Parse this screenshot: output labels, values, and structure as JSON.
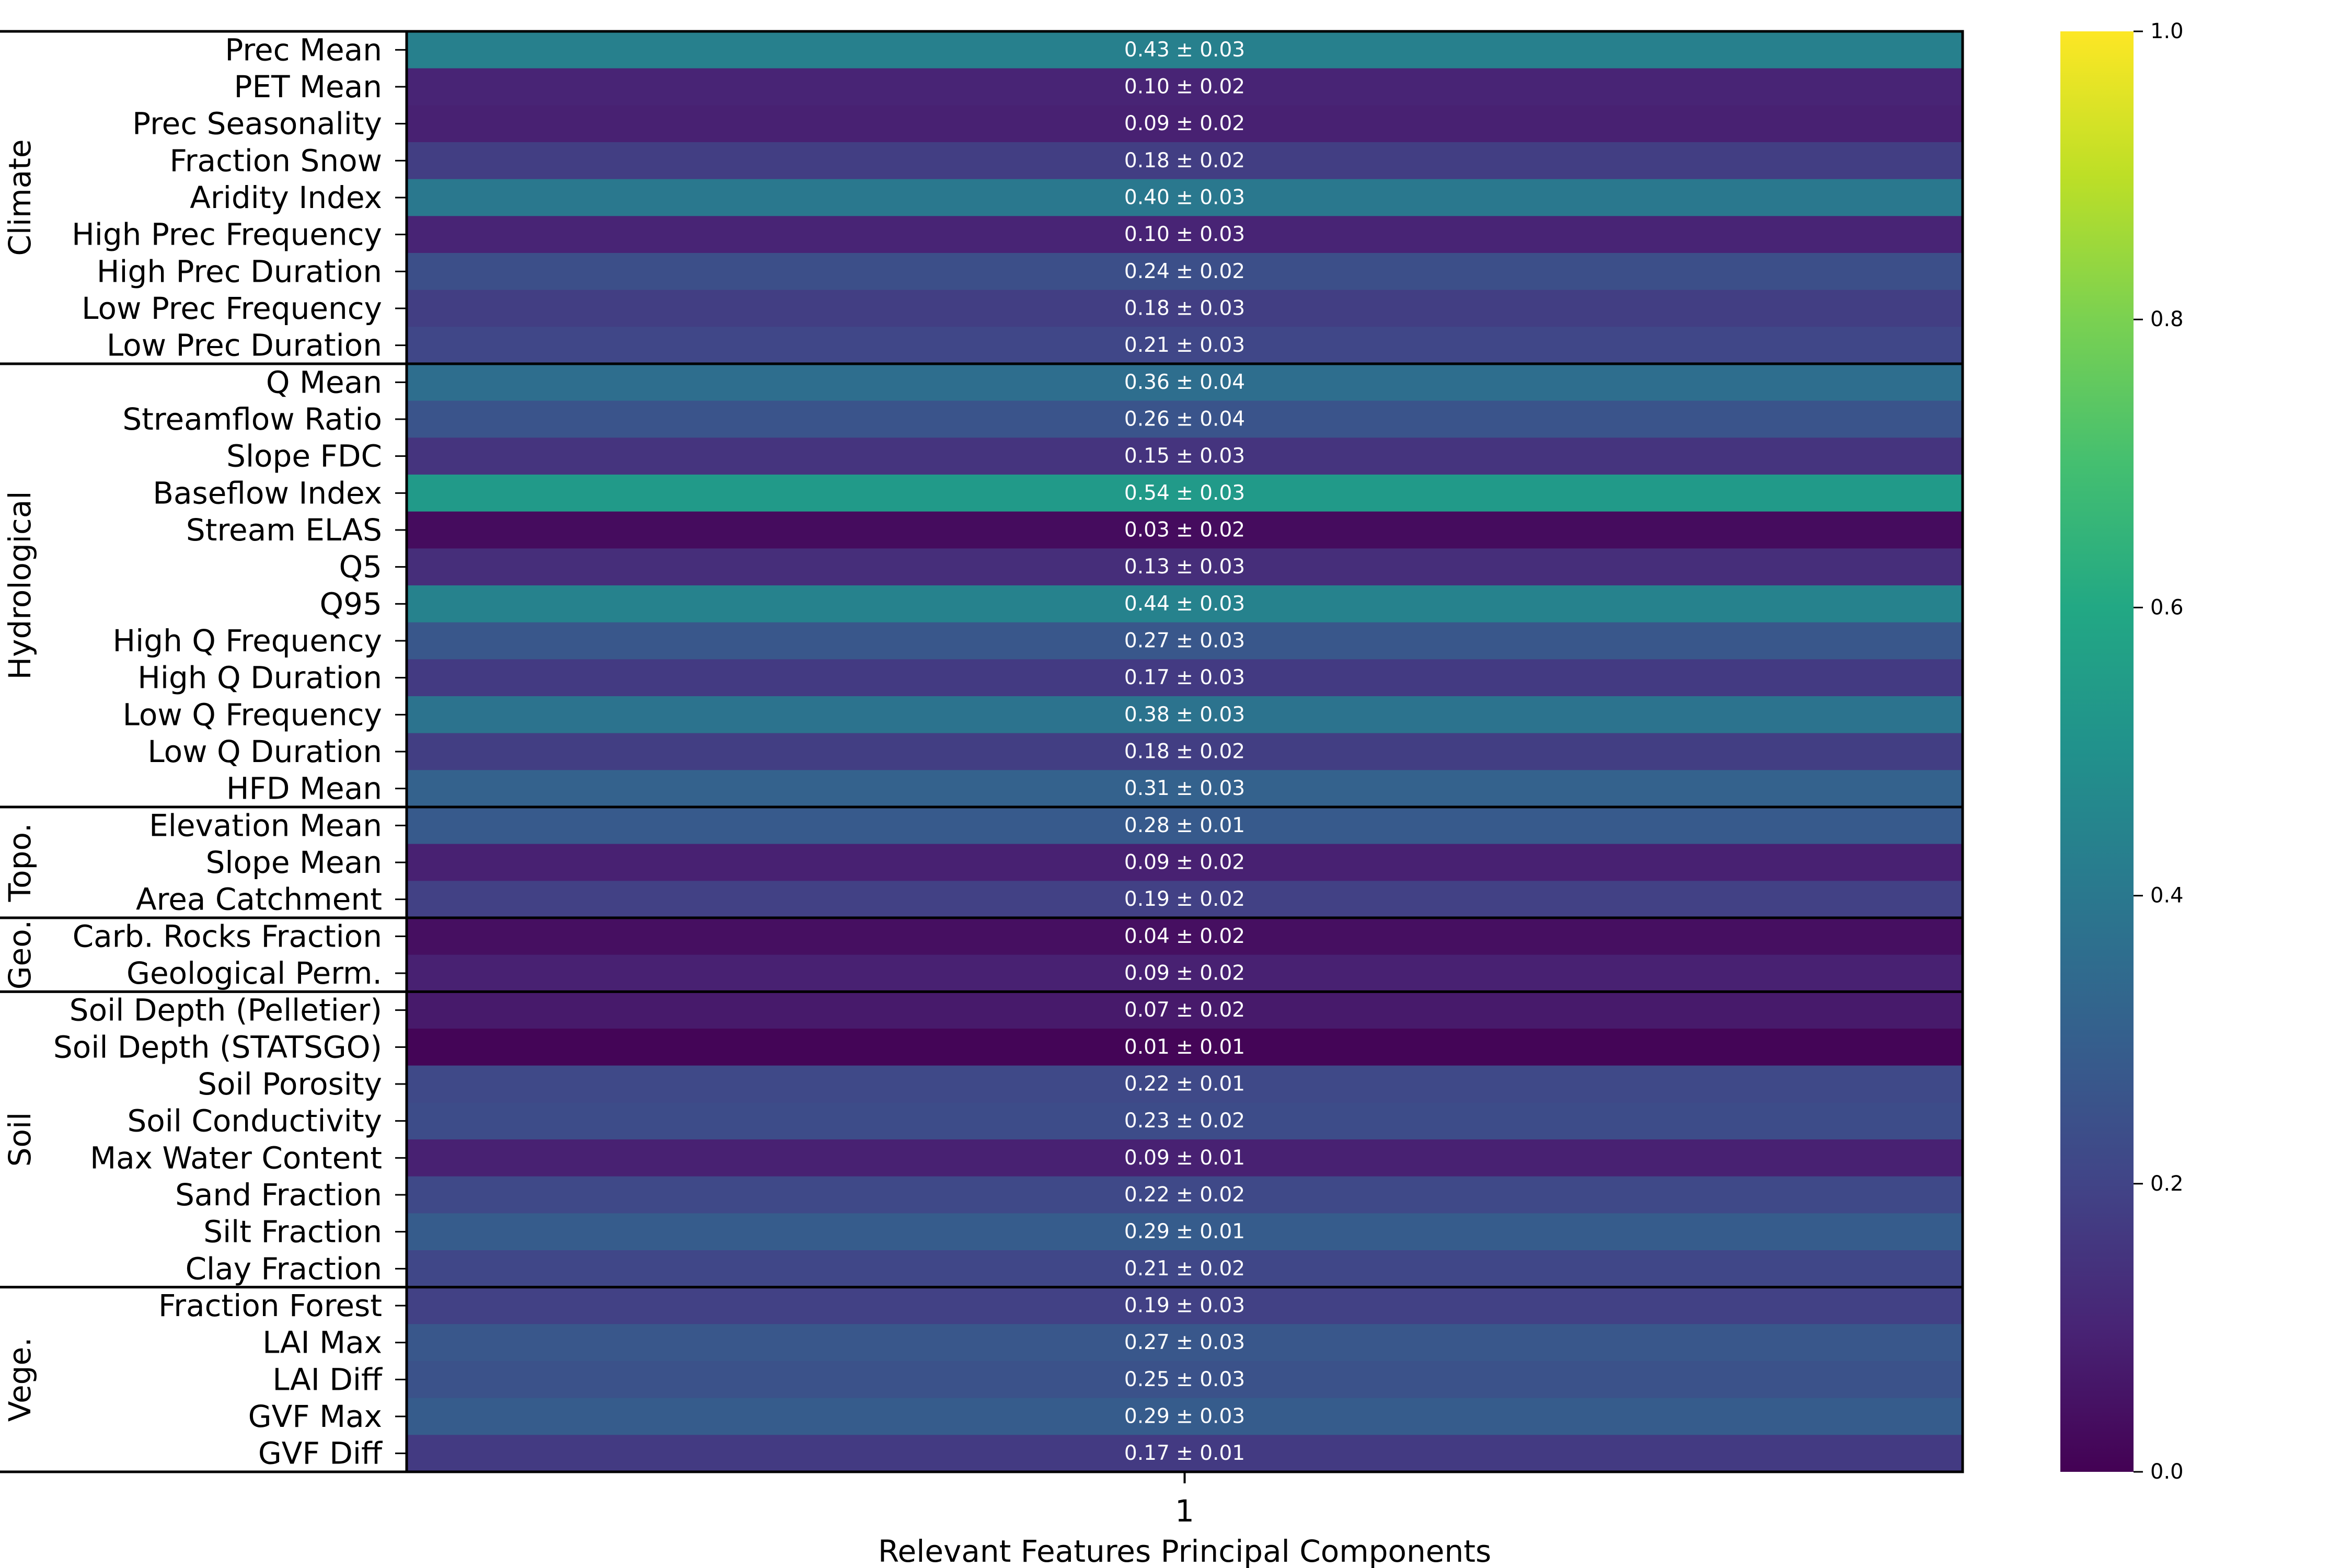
{
  "chart_data": {
    "type": "heatmap",
    "xlabel": "Relevant Features Principal Components",
    "x_categories": [
      "1"
    ],
    "colormap": "viridis",
    "colorbar": {
      "range": [
        0.0,
        1.0
      ],
      "ticks": [
        "0.0",
        "0.2",
        "0.4",
        "0.6",
        "0.8",
        "1.0"
      ]
    },
    "groups": [
      {
        "name": "Climate",
        "rows": [
          {
            "label": "Prec Mean",
            "value": 0.43,
            "text": "0.43 ± 0.03"
          },
          {
            "label": "PET Mean",
            "value": 0.1,
            "text": "0.10 ± 0.02"
          },
          {
            "label": "Prec Seasonality",
            "value": 0.09,
            "text": "0.09 ± 0.02"
          },
          {
            "label": "Fraction Snow",
            "value": 0.18,
            "text": "0.18 ± 0.02"
          },
          {
            "label": "Aridity Index",
            "value": 0.4,
            "text": "0.40 ± 0.03"
          },
          {
            "label": "High Prec Frequency",
            "value": 0.1,
            "text": "0.10 ± 0.03"
          },
          {
            "label": "High Prec Duration",
            "value": 0.24,
            "text": "0.24 ± 0.02"
          },
          {
            "label": "Low Prec Frequency",
            "value": 0.18,
            "text": "0.18 ± 0.03"
          },
          {
            "label": "Low Prec Duration",
            "value": 0.21,
            "text": "0.21 ± 0.03"
          }
        ]
      },
      {
        "name": "Hydrological",
        "rows": [
          {
            "label": "Q Mean",
            "value": 0.36,
            "text": "0.36 ± 0.04"
          },
          {
            "label": "Streamflow Ratio",
            "value": 0.26,
            "text": "0.26 ± 0.04"
          },
          {
            "label": "Slope FDC",
            "value": 0.15,
            "text": "0.15 ± 0.03"
          },
          {
            "label": "Baseflow Index",
            "value": 0.54,
            "text": "0.54 ± 0.03"
          },
          {
            "label": "Stream ELAS",
            "value": 0.03,
            "text": "0.03 ± 0.02"
          },
          {
            "label": "Q5",
            "value": 0.13,
            "text": "0.13 ± 0.03"
          },
          {
            "label": "Q95",
            "value": 0.44,
            "text": "0.44 ± 0.03"
          },
          {
            "label": "High Q Frequency",
            "value": 0.27,
            "text": "0.27 ± 0.03"
          },
          {
            "label": "High Q Duration",
            "value": 0.17,
            "text": "0.17 ± 0.03"
          },
          {
            "label": "Low Q Frequency",
            "value": 0.38,
            "text": "0.38 ± 0.03"
          },
          {
            "label": "Low Q Duration",
            "value": 0.18,
            "text": "0.18 ± 0.02"
          },
          {
            "label": "HFD Mean",
            "value": 0.31,
            "text": "0.31 ± 0.03"
          }
        ]
      },
      {
        "name": "Topo.",
        "rows": [
          {
            "label": "Elevation Mean",
            "value": 0.28,
            "text": "0.28 ± 0.01"
          },
          {
            "label": "Slope Mean",
            "value": 0.09,
            "text": "0.09 ± 0.02"
          },
          {
            "label": "Area Catchment",
            "value": 0.19,
            "text": "0.19 ± 0.02"
          }
        ]
      },
      {
        "name": "Geo.",
        "rows": [
          {
            "label": "Carb. Rocks Fraction",
            "value": 0.04,
            "text": "0.04 ± 0.02"
          },
          {
            "label": "Geological Perm.",
            "value": 0.09,
            "text": "0.09 ± 0.02"
          }
        ]
      },
      {
        "name": "Soil",
        "rows": [
          {
            "label": "Soil Depth (Pelletier)",
            "value": 0.07,
            "text": "0.07 ± 0.02"
          },
          {
            "label": "Soil Depth (STATSGO)",
            "value": 0.01,
            "text": "0.01 ± 0.01"
          },
          {
            "label": "Soil Porosity",
            "value": 0.22,
            "text": "0.22 ± 0.01"
          },
          {
            "label": "Soil Conductivity",
            "value": 0.23,
            "text": "0.23 ± 0.02"
          },
          {
            "label": "Max Water Content",
            "value": 0.09,
            "text": "0.09 ± 0.01"
          },
          {
            "label": "Sand Fraction",
            "value": 0.22,
            "text": "0.22 ± 0.02"
          },
          {
            "label": "Silt Fraction",
            "value": 0.29,
            "text": "0.29 ± 0.01"
          },
          {
            "label": "Clay Fraction",
            "value": 0.21,
            "text": "0.21 ± 0.02"
          }
        ]
      },
      {
        "name": "Vege.",
        "rows": [
          {
            "label": "Fraction Forest",
            "value": 0.19,
            "text": "0.19 ± 0.03"
          },
          {
            "label": "LAI Max",
            "value": 0.27,
            "text": "0.27 ± 0.03"
          },
          {
            "label": "LAI Diff",
            "value": 0.25,
            "text": "0.25 ± 0.03"
          },
          {
            "label": "GVF Max",
            "value": 0.29,
            "text": "0.29 ± 0.03"
          },
          {
            "label": "GVF Diff",
            "value": 0.17,
            "text": "0.17 ± 0.01"
          }
        ]
      }
    ]
  }
}
